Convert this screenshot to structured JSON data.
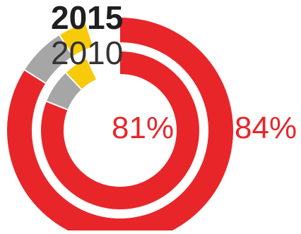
{
  "chart_data": {
    "type": "donut",
    "title": "",
    "categories_order": [
      "share_main",
      "share_grey",
      "share_yellow"
    ],
    "series": [
      {
        "name": "2015",
        "ring": "outer",
        "values": [
          84,
          7,
          4
        ],
        "value_label": "84%"
      },
      {
        "name": "2010",
        "ring": "inner",
        "values": [
          81,
          7,
          5
        ],
        "value_label": "81%"
      }
    ],
    "arc_span_percent": 95
  },
  "colors": {
    "main": "#e8262a",
    "grey": "#a6a6a6",
    "yellow": "#f8cb0a",
    "separator": "#ffffff"
  }
}
